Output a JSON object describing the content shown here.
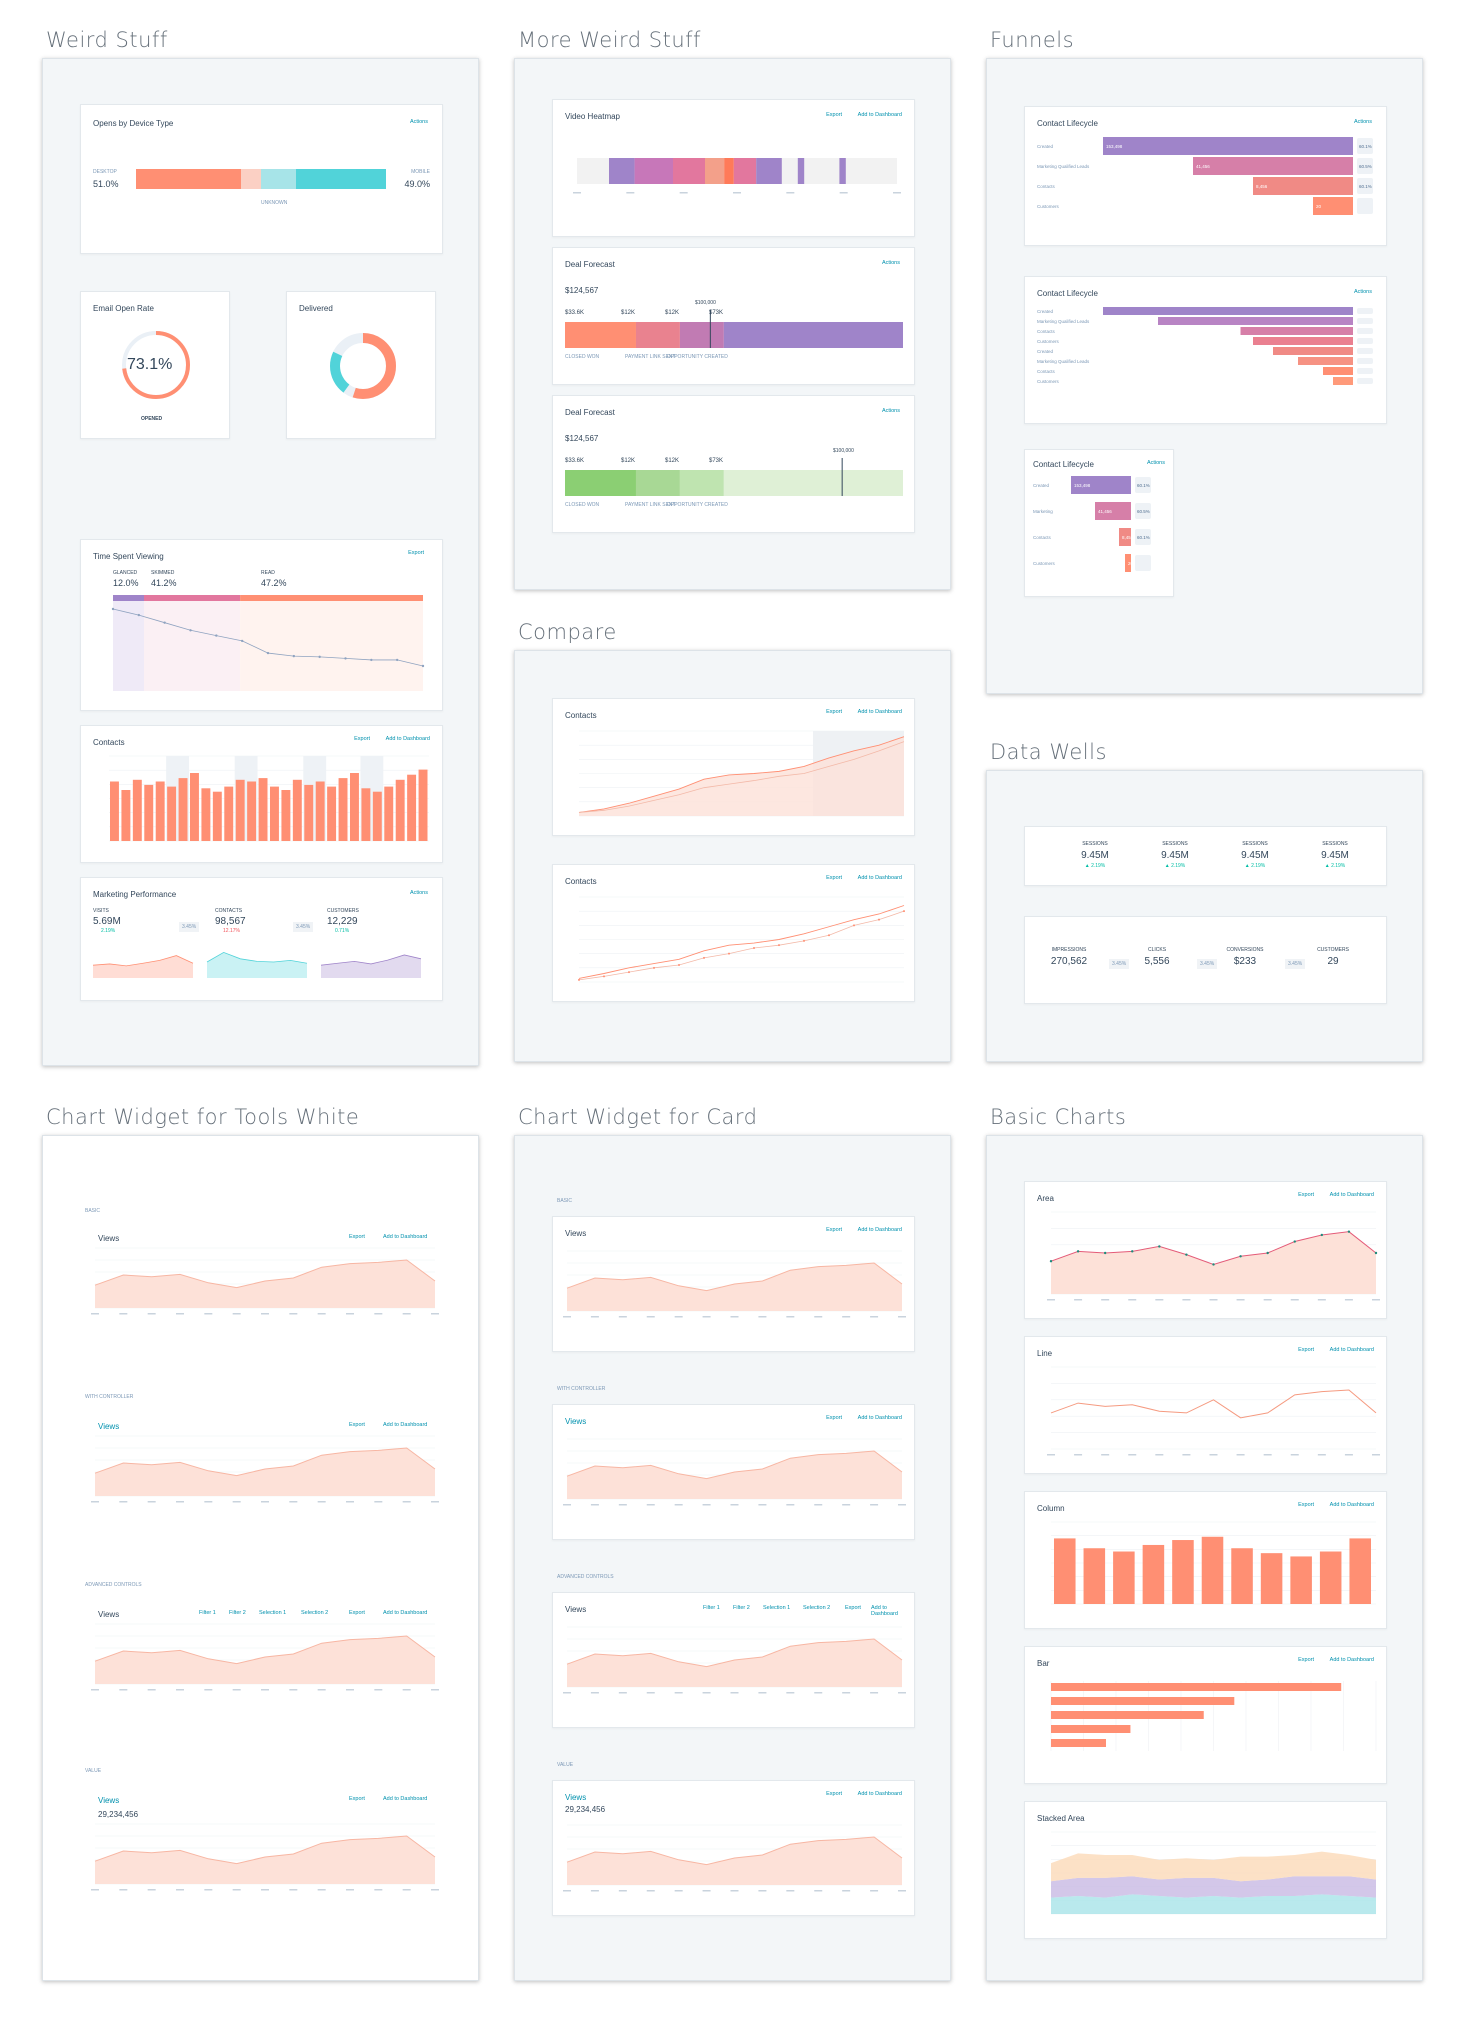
{
  "sections": {
    "weird": "Weird Stuff",
    "more_weird": "More Weird Stuff",
    "funnels": "Funnels",
    "compare": "Compare",
    "data_wells": "Data Wells",
    "tools_white": "Chart Widget for Tools White",
    "card": "Chart Widget for Card",
    "basic": "Basic Charts"
  },
  "common": {
    "export": "Export",
    "add_dashboard": "Add to Dashboard",
    "actions": "Actions"
  },
  "device": {
    "title": "Opens by Device Type",
    "desktop_label": "DESKTOP",
    "desktop_value": "51.0%",
    "mobile_label": "MOBILE",
    "mobile_value": "49.0%",
    "unknown_label": "UNKNOWN",
    "segments": [
      0.42,
      0.08,
      0.14,
      0.36
    ],
    "colors": [
      "#ff8f73",
      "#fbd0c4",
      "#a7e4e8",
      "#51d3d9"
    ]
  },
  "open_rate": {
    "title": "Email Open Rate",
    "value": "73.1%",
    "sub": "OPENED",
    "fraction": 0.731
  },
  "delivered": {
    "title": "Delivered"
  },
  "time_spent": {
    "title": "Time Spent Viewing",
    "seg_labels": [
      "GLANCED",
      "SKIMMED",
      "READ"
    ],
    "seg_values": [
      "12.0%",
      "41.2%",
      "47.2%"
    ],
    "curve": [
      100,
      92,
      82,
      72,
      65,
      58,
      42,
      38,
      37,
      35,
      33,
      33,
      25
    ]
  },
  "contacts_bar": {
    "title": "Contacts",
    "bars": [
      70,
      60,
      72,
      66,
      70,
      64,
      74,
      80,
      62,
      58,
      64,
      72,
      70,
      74,
      64,
      60,
      72,
      66,
      70,
      64,
      74,
      80,
      62,
      58,
      64,
      72,
      78,
      84
    ]
  },
  "marketing": {
    "title": "Marketing Performance",
    "items": [
      {
        "label": "VISITS",
        "value": "5.69M",
        "delta": "2.19%"
      },
      {
        "label": "CONTACTS",
        "value": "98,567",
        "delta": "12.17%"
      },
      {
        "label": "CUSTOMERS",
        "value": "12,229",
        "delta": "0.71%"
      }
    ],
    "between": [
      "3.45%",
      "3.45%"
    ],
    "colors": [
      "#ff8f73",
      "#51d3d9",
      "#9f84c9"
    ]
  },
  "heatmap": {
    "title": "Video Heatmap"
  },
  "deal1": {
    "title": "Deal Forecast",
    "total": "$124,567",
    "values": [
      "$33.6K",
      "$12K",
      "$12K",
      "$73K"
    ],
    "labels": [
      "CLOSED WON",
      "PAYMENT LINK SENT",
      "OPPORTUNITY CREATED"
    ],
    "target": "$100,000"
  },
  "deal2": {
    "title": "Deal Forecast",
    "total": "$124,567",
    "values": [
      "$33.6K",
      "$12K",
      "$12K",
      "$73K"
    ],
    "labels": [
      "CLOSED WON",
      "PAYMENT LINK SENT",
      "OPPORTUNITY CREATED"
    ],
    "target": "$100,000"
  },
  "funnel1": {
    "title": "Contact Lifecycle",
    "rows": [
      {
        "label": "Created",
        "value": "153,498",
        "pct": "60.1%",
        "width": 1.0
      },
      {
        "label": "Marketing Qualified Leads",
        "value": "41,456",
        "pct": "60.5%",
        "width": 0.64
      },
      {
        "label": "Contacts",
        "value": "8,456",
        "pct": "60.1%",
        "width": 0.4
      },
      {
        "label": "Customers",
        "value": "20",
        "pct": "",
        "width": 0.16
      }
    ]
  },
  "funnel2": {
    "title": "Contact Lifecycle",
    "rows": [
      {
        "label": "Created",
        "width": 1.0
      },
      {
        "label": "Marketing Qualified Leads",
        "width": 0.78
      },
      {
        "label": "Contacts",
        "width": 0.45
      },
      {
        "label": "Customers",
        "width": 0.4
      },
      {
        "label": "Created",
        "width": 0.32
      },
      {
        "label": "Marketing Qualified Leads",
        "width": 0.22
      },
      {
        "label": "Contacts",
        "width": 0.12
      },
      {
        "label": "Customers",
        "width": 0.08
      }
    ]
  },
  "funnel3": {
    "title": "Contact Lifecycle",
    "rows": [
      {
        "label": "Created",
        "value": "153,498",
        "pct": "60.1%",
        "width": 1.0
      },
      {
        "label": "Marketing",
        "value": "41,456",
        "pct": "60.5%",
        "width": 0.6
      },
      {
        "label": "Contacts",
        "value": "8,456",
        "pct": "60.1%",
        "width": 0.2
      },
      {
        "label": "Customers",
        "value": "20",
        "pct": "",
        "width": 0.1
      }
    ]
  },
  "compare1": {
    "title": "Contacts",
    "a": [
      5,
      10,
      18,
      28,
      38,
      52,
      58,
      60,
      63,
      70,
      82,
      92,
      100,
      112
    ],
    "b": [
      5,
      8,
      14,
      22,
      30,
      40,
      45,
      50,
      56,
      60,
      70,
      80,
      92,
      105
    ]
  },
  "compare2": {
    "title": "Contacts",
    "a": [
      5,
      12,
      20,
      26,
      32,
      44,
      52,
      55,
      60,
      68,
      78,
      88,
      96,
      108
    ],
    "b": [
      3,
      8,
      14,
      20,
      24,
      34,
      40,
      48,
      52,
      58,
      66,
      80,
      88,
      100
    ]
  },
  "wells1": [
    {
      "label": "SESSIONS",
      "value": "9.45M",
      "delta": "2.19%"
    },
    {
      "label": "SESSIONS",
      "value": "9.45M",
      "delta": "2.19%"
    },
    {
      "label": "SESSIONS",
      "value": "9.45M",
      "delta": "2.19%"
    },
    {
      "label": "SESSIONS",
      "value": "9.45M",
      "delta": "2.19%"
    }
  ],
  "wells2": [
    {
      "label": "IMPRESSIONS",
      "value": "270,562"
    },
    {
      "label": "CLICKS",
      "value": "5,556"
    },
    {
      "label": "CONVERSIONS",
      "value": "$233"
    },
    {
      "label": "CUSTOMERS",
      "value": "29"
    }
  ],
  "wells2_between": [
    "3.45%",
    "3.45%",
    "3.45%"
  ],
  "tools": {
    "views_title": "Views",
    "views_dd": "Views",
    "total": "29,234,456",
    "filters": [
      "Filter 1",
      "Filter 2",
      "Selection 1",
      "Selection 2"
    ],
    "sub_labels": [
      "BASIC",
      "WITH CONTROLLER",
      "ADVANCED CONTROLS",
      "VALUE"
    ]
  },
  "views_series": [
    38,
    55,
    52,
    56,
    42,
    34,
    45,
    50,
    68,
    74,
    76,
    80,
    45
  ],
  "basic": {
    "area_title": "Area",
    "line_title": "Line",
    "column_title": "Column",
    "bar_title": "Bar",
    "stacked_title": "Stacked Area",
    "area": [
      40,
      52,
      50,
      52,
      58,
      48,
      36,
      46,
      50,
      64,
      72,
      76,
      50
    ],
    "line": [
      44,
      56,
      52,
      54,
      46,
      44,
      60,
      38,
      44,
      66,
      70,
      72,
      44
    ],
    "columns": [
      80,
      68,
      64,
      72,
      78,
      82,
      68,
      62,
      58,
      64,
      80
    ],
    "bars": [
      0.95,
      0.6,
      0.5,
      0.26,
      0.18
    ]
  },
  "colors": {
    "accent": "#0091ae",
    "orange": "#ff8f73",
    "orange_fill": "#fde1d8",
    "purple": "#9f84c9",
    "pink": "#e2779e",
    "teal": "#51d3d9",
    "green": "#a8d895"
  }
}
